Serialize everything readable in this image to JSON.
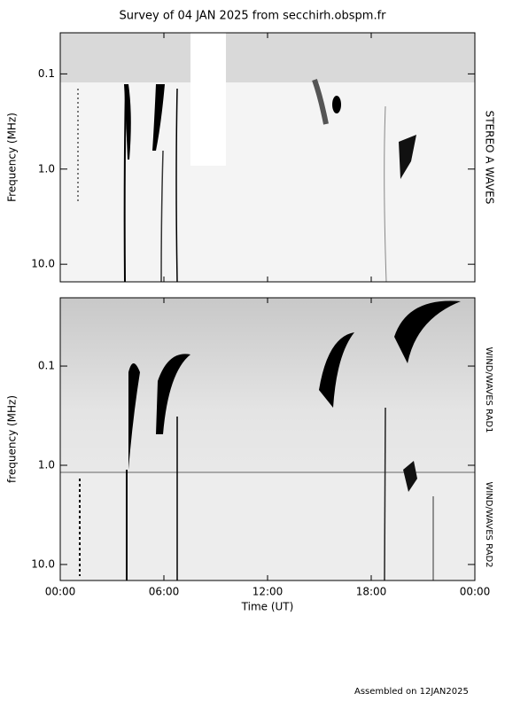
{
  "title": "Survey of 04 JAN 2025 from secchirh.obspm.fr",
  "footer": "Assembled on 12JAN2025",
  "chart_data": [
    {
      "type": "spectrogram",
      "ylabel": "Frequency (MHz)",
      "instrument": "STEREO A WAVES",
      "xlim": [
        0,
        24
      ],
      "ylim": [
        0.037,
        15.3
      ],
      "log_y": true,
      "y_inverted": true,
      "yticks": [
        0.1,
        {
          "value": 1,
          "label": "1.0"
        },
        {
          "value": 10,
          "label": "10.0"
        }
      ]
    },
    {
      "type": "spectrogram",
      "ylabel": "frequency (MHz)",
      "xlabel": "Time (UT)",
      "instruments": [
        "WIND/WAVES RAD1",
        "WIND/WAVES RAD2"
      ],
      "xlim": [
        0,
        24
      ],
      "ylim": [
        0.0205,
        14.5
      ],
      "log_y": true,
      "y_inverted": true,
      "yticks": [
        0.1,
        {
          "value": 1,
          "label": "1.0"
        },
        {
          "value": 10,
          "label": "10.0"
        }
      ],
      "xticks": [
        {
          "value": 0,
          "label": "00:00"
        },
        {
          "value": 6,
          "label": "06:00"
        },
        {
          "value": 12,
          "label": "12:00"
        },
        {
          "value": 18,
          "label": "18:00"
        },
        {
          "value": 24,
          "label": "00:00"
        }
      ]
    }
  ]
}
